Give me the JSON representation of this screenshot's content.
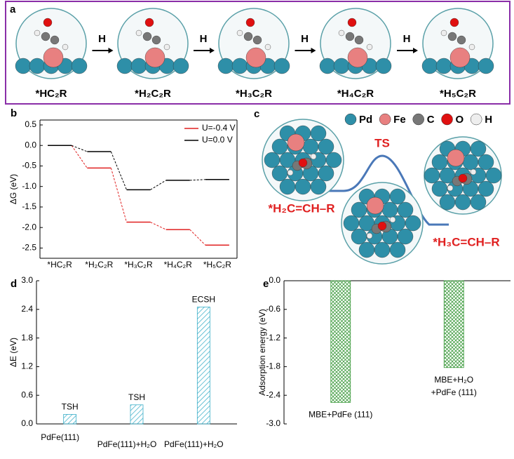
{
  "panel_a": {
    "label": "a",
    "arrow_labels": [
      "H",
      "H",
      "H",
      "H"
    ],
    "species": [
      "*HC₂R",
      "*H₂C₂R",
      "*H₃C₂R",
      "*H₄C₂R",
      "*H₅C₂R"
    ]
  },
  "panel_c": {
    "label": "c",
    "legend": [
      {
        "name": "Pd",
        "color": "#2e8fa8"
      },
      {
        "name": "Fe",
        "color": "#e88080"
      },
      {
        "name": "C",
        "color": "#777777"
      },
      {
        "name": "O",
        "color": "#e01010"
      },
      {
        "name": "H",
        "color": "#eeeeee"
      }
    ],
    "ts_label": "TS",
    "initial_label": "*H₂C=CH–R",
    "final_label": "*H₃C=CH–R"
  },
  "chart_data": [
    {
      "type": "line",
      "label": "b",
      "ylabel": "ΔG (eV)",
      "categories": [
        "*HC₂R",
        "*H₂C₂R",
        "*H₃C₂R",
        "*H₄C₂R",
        "*H₅C₂R"
      ],
      "series": [
        {
          "name": "U=-0.4 V",
          "color": "#e02020",
          "values": [
            0,
            -0.55,
            -1.87,
            -2.05,
            -2.43
          ]
        },
        {
          "name": "U=0.0 V",
          "color": "#000000",
          "values": [
            0,
            -0.15,
            -1.08,
            -0.85,
            -0.83
          ]
        }
      ],
      "ylim": [
        -2.75,
        0.62
      ],
      "yticks": [
        0.5,
        {
          "value": 0,
          "label": "0.0"
        },
        -0.5,
        {
          "value": -1,
          "label": "-1.0"
        },
        -1.5,
        {
          "value": -2,
          "label": "-2.0"
        },
        -2.5
      ],
      "legend": "upper right"
    },
    {
      "type": "bar",
      "label": "d",
      "ylabel": "ΔE (eV)",
      "color": "#3aaec8",
      "categories": [
        "PdFe(111)",
        "PdFe(111)+H₂O",
        "PdFe(111)+H₂O"
      ],
      "values": [
        0.2,
        0.4,
        2.45
      ],
      "annotations": [
        "TSH",
        "TSH",
        "ECSH"
      ],
      "ylim": [
        0,
        3
      ],
      "yticks": [
        {
          "value": 0,
          "label": "0.0"
        },
        0.6,
        1.2,
        1.8,
        2.4,
        {
          "value": 3,
          "label": "3.0"
        }
      ]
    },
    {
      "type": "bar",
      "label": "e",
      "ylabel": "Adsorption energy (eV)",
      "color": "#3c9a3c",
      "categories": [
        [
          "MBE+PdFe (111)"
        ],
        [
          "MBE+H₂O",
          "+PdFe (111)"
        ]
      ],
      "values": [
        -2.55,
        -1.82
      ],
      "ylim": [
        -3,
        0
      ],
      "yticks": [
        {
          "value": 0,
          "label": "0.0"
        },
        -0.6,
        -1.2,
        -1.8,
        -2.4,
        {
          "value": -3,
          "label": "-3.0"
        }
      ]
    }
  ]
}
